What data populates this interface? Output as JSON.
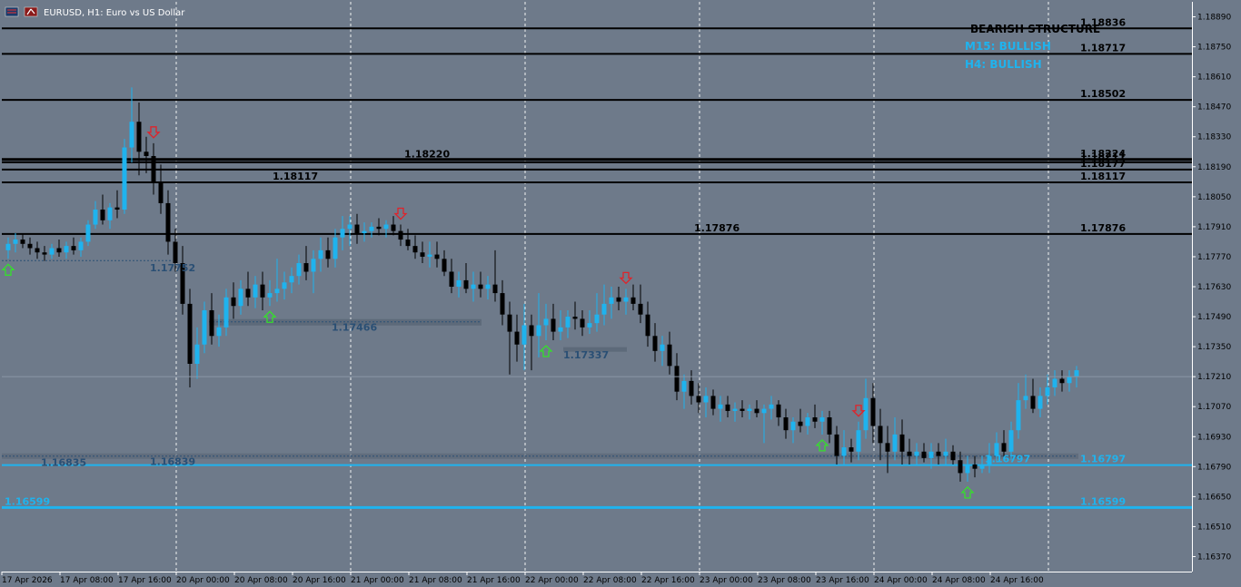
{
  "window": {
    "title": "EURUSD, H1:  Euro vs US Dollar",
    "icons": [
      "chart-window-icon",
      "trading-icon"
    ]
  },
  "colors": {
    "background": "#6e7a8a",
    "bull": "#1fb3ee",
    "bear": "#000000",
    "grid": "#ffffff",
    "level": "#000000",
    "support": "#1fb3ee",
    "up_arrow": "#35e02b",
    "down_arrow": "#e0232a"
  },
  "info_panel": {
    "structure": "BEARISH STRUCTURE",
    "m15": "M15: BULLISH",
    "h4": "H4: BULLISH"
  },
  "chart_data": {
    "type": "candlestick",
    "symbol": "EURUSD",
    "timeframe": "H1",
    "ylim": [
      1.163,
      1.1896
    ],
    "grid": "vertical-dashed",
    "y_ticks": [
      "1.18890",
      "1.18750",
      "1.18610",
      "1.18470",
      "1.18330",
      "1.18190",
      "1.18050",
      "1.17910",
      "1.17770",
      "1.17630",
      "1.17490",
      "1.17350",
      "1.17210",
      "1.17070",
      "1.16930",
      "1.16790",
      "1.16650",
      "1.16510",
      "1.16370"
    ],
    "x_ticks": [
      "17 Apr 2026",
      "17 Apr 08:00",
      "17 Apr 16:00",
      "20 Apr 00:00",
      "20 Apr 08:00",
      "20 Apr 16:00",
      "21 Apr 00:00",
      "21 Apr 08:00",
      "21 Apr 16:00",
      "22 Apr 00:00",
      "22 Apr 08:00",
      "22 Apr 16:00",
      "23 Apr 00:00",
      "23 Apr 08:00",
      "23 Apr 16:00",
      "24 Apr 00:00",
      "24 Apr 08:00",
      "24 Apr 16:00"
    ],
    "current_price": 1.1721,
    "candles": [
      [
        1.178,
        1.1786,
        1.1776,
        1.1783
      ],
      [
        1.1783,
        1.1788,
        1.1779,
        1.1785
      ],
      [
        1.1785,
        1.1788,
        1.1781,
        1.1783
      ],
      [
        1.1783,
        1.1786,
        1.1778,
        1.1781
      ],
      [
        1.1781,
        1.1784,
        1.1776,
        1.1779
      ],
      [
        1.1779,
        1.1782,
        1.1775,
        1.1778
      ],
      [
        1.1778,
        1.1783,
        1.1776,
        1.1781
      ],
      [
        1.1781,
        1.1785,
        1.1777,
        1.1779
      ],
      [
        1.1779,
        1.1784,
        1.1776,
        1.1782
      ],
      [
        1.1782,
        1.1786,
        1.1778,
        1.178
      ],
      [
        1.178,
        1.1786,
        1.1777,
        1.1784
      ],
      [
        1.1784,
        1.1794,
        1.1782,
        1.1792
      ],
      [
        1.1792,
        1.1803,
        1.179,
        1.1799
      ],
      [
        1.1799,
        1.1806,
        1.1792,
        1.1794
      ],
      [
        1.1794,
        1.1802,
        1.179,
        1.18
      ],
      [
        1.18,
        1.1808,
        1.1795,
        1.1799
      ],
      [
        1.1799,
        1.1832,
        1.1797,
        1.1828
      ],
      [
        1.1828,
        1.1856,
        1.1821,
        1.184
      ],
      [
        1.184,
        1.1849,
        1.1815,
        1.1826
      ],
      [
        1.1826,
        1.1833,
        1.1816,
        1.1824
      ],
      [
        1.1824,
        1.183,
        1.1806,
        1.1812
      ],
      [
        1.1812,
        1.182,
        1.1797,
        1.1802
      ],
      [
        1.1802,
        1.1808,
        1.1778,
        1.1784
      ],
      [
        1.1784,
        1.179,
        1.177,
        1.1774
      ],
      [
        1.1774,
        1.1782,
        1.175,
        1.1755
      ],
      [
        1.1755,
        1.1762,
        1.1716,
        1.1727
      ],
      [
        1.1727,
        1.1744,
        1.172,
        1.1736
      ],
      [
        1.1736,
        1.1756,
        1.1732,
        1.1752
      ],
      [
        1.1752,
        1.176,
        1.1736,
        1.174
      ],
      [
        1.174,
        1.175,
        1.1735,
        1.1744
      ],
      [
        1.1744,
        1.1762,
        1.174,
        1.1758
      ],
      [
        1.1758,
        1.1765,
        1.1748,
        1.1754
      ],
      [
        1.1754,
        1.1766,
        1.175,
        1.1762
      ],
      [
        1.1762,
        1.177,
        1.1754,
        1.1758
      ],
      [
        1.1758,
        1.1768,
        1.1753,
        1.1764
      ],
      [
        1.1764,
        1.177,
        1.1752,
        1.1758
      ],
      [
        1.1758,
        1.1766,
        1.1754,
        1.176
      ],
      [
        1.176,
        1.1776,
        1.1756,
        1.1762
      ],
      [
        1.1762,
        1.177,
        1.1757,
        1.1765
      ],
      [
        1.1765,
        1.1772,
        1.176,
        1.1768
      ],
      [
        1.1768,
        1.1778,
        1.1764,
        1.1774
      ],
      [
        1.1774,
        1.1782,
        1.1766,
        1.177
      ],
      [
        1.177,
        1.178,
        1.176,
        1.1776
      ],
      [
        1.1776,
        1.1786,
        1.177,
        1.178
      ],
      [
        1.178,
        1.1786,
        1.1772,
        1.1776
      ],
      [
        1.1776,
        1.179,
        1.1772,
        1.1786
      ],
      [
        1.1786,
        1.1796,
        1.178,
        1.179
      ],
      [
        1.179,
        1.1796,
        1.1782,
        1.1792
      ],
      [
        1.1792,
        1.1797,
        1.1783,
        1.1788
      ],
      [
        1.1788,
        1.1793,
        1.1784,
        1.1789
      ],
      [
        1.1789,
        1.1793,
        1.1786,
        1.1791
      ],
      [
        1.1791,
        1.1795,
        1.1787,
        1.179
      ],
      [
        1.179,
        1.1794,
        1.1786,
        1.1792
      ],
      [
        1.1792,
        1.1796,
        1.1787,
        1.1789
      ],
      [
        1.1789,
        1.1792,
        1.1782,
        1.1785
      ],
      [
        1.1785,
        1.179,
        1.178,
        1.1782
      ],
      [
        1.1782,
        1.1787,
        1.1776,
        1.1779
      ],
      [
        1.1779,
        1.1784,
        1.1774,
        1.1777
      ],
      [
        1.1777,
        1.1784,
        1.1772,
        1.1778
      ],
      [
        1.1778,
        1.1784,
        1.1772,
        1.1776
      ],
      [
        1.1776,
        1.178,
        1.1768,
        1.177
      ],
      [
        1.177,
        1.1776,
        1.176,
        1.1763
      ],
      [
        1.1763,
        1.177,
        1.1758,
        1.1766
      ],
      [
        1.1766,
        1.1774,
        1.176,
        1.1762
      ],
      [
        1.1762,
        1.177,
        1.1756,
        1.1764
      ],
      [
        1.1764,
        1.177,
        1.1758,
        1.1762
      ],
      [
        1.1762,
        1.1768,
        1.1757,
        1.1764
      ],
      [
        1.1764,
        1.178,
        1.1756,
        1.176
      ],
      [
        1.176,
        1.1766,
        1.1745,
        1.175
      ],
      [
        1.175,
        1.1756,
        1.1722,
        1.1742
      ],
      [
        1.1742,
        1.175,
        1.1728,
        1.1736
      ],
      [
        1.1736,
        1.1755,
        1.1724,
        1.1745
      ],
      [
        1.1745,
        1.175,
        1.1724,
        1.174
      ],
      [
        1.174,
        1.176,
        1.173,
        1.1745
      ],
      [
        1.1745,
        1.1755,
        1.1738,
        1.1748
      ],
      [
        1.1748,
        1.1755,
        1.1738,
        1.1742
      ],
      [
        1.1742,
        1.1752,
        1.1738,
        1.1744
      ],
      [
        1.1744,
        1.1752,
        1.1739,
        1.1749
      ],
      [
        1.1749,
        1.1756,
        1.1743,
        1.1748
      ],
      [
        1.1748,
        1.1752,
        1.174,
        1.1744
      ],
      [
        1.1744,
        1.1752,
        1.1741,
        1.1746
      ],
      [
        1.1746,
        1.176,
        1.1742,
        1.175
      ],
      [
        1.175,
        1.1764,
        1.1745,
        1.1755
      ],
      [
        1.1755,
        1.1763,
        1.1748,
        1.1758
      ],
      [
        1.1758,
        1.1763,
        1.1752,
        1.1756
      ],
      [
        1.1756,
        1.1762,
        1.175,
        1.1758
      ],
      [
        1.1758,
        1.1764,
        1.1752,
        1.1755
      ],
      [
        1.1755,
        1.1764,
        1.1746,
        1.175
      ],
      [
        1.175,
        1.1756,
        1.1735,
        1.174
      ],
      [
        1.174,
        1.1746,
        1.1728,
        1.1733
      ],
      [
        1.1733,
        1.174,
        1.1726,
        1.1736
      ],
      [
        1.1736,
        1.1742,
        1.1722,
        1.1726
      ],
      [
        1.1726,
        1.1732,
        1.171,
        1.1714
      ],
      [
        1.1714,
        1.1722,
        1.1706,
        1.1719
      ],
      [
        1.1719,
        1.1724,
        1.1708,
        1.1712
      ],
      [
        1.1712,
        1.1718,
        1.1704,
        1.1709
      ],
      [
        1.1709,
        1.1716,
        1.1702,
        1.1712
      ],
      [
        1.1712,
        1.1715,
        1.1703,
        1.1706
      ],
      [
        1.1706,
        1.1712,
        1.17,
        1.1708
      ],
      [
        1.1708,
        1.1712,
        1.1702,
        1.1705
      ],
      [
        1.1705,
        1.1709,
        1.17,
        1.1706
      ],
      [
        1.1706,
        1.171,
        1.1702,
        1.1705
      ],
      [
        1.1705,
        1.1708,
        1.1701,
        1.1706
      ],
      [
        1.1706,
        1.171,
        1.1702,
        1.1704
      ],
      [
        1.1704,
        1.1708,
        1.169,
        1.1706
      ],
      [
        1.1706,
        1.1712,
        1.1701,
        1.1708
      ],
      [
        1.1708,
        1.171,
        1.1698,
        1.1702
      ],
      [
        1.1702,
        1.1706,
        1.1692,
        1.1696
      ],
      [
        1.1696,
        1.1702,
        1.169,
        1.17
      ],
      [
        1.17,
        1.1706,
        1.1695,
        1.1698
      ],
      [
        1.1698,
        1.1704,
        1.1694,
        1.1702
      ],
      [
        1.1702,
        1.1708,
        1.1697,
        1.17
      ],
      [
        1.17,
        1.1705,
        1.1694,
        1.1702
      ],
      [
        1.1702,
        1.1705,
        1.169,
        1.1694
      ],
      [
        1.1694,
        1.1698,
        1.168,
        1.1684
      ],
      [
        1.1684,
        1.1696,
        1.168,
        1.1688
      ],
      [
        1.1688,
        1.1692,
        1.1681,
        1.1686
      ],
      [
        1.1686,
        1.17,
        1.1682,
        1.1696
      ],
      [
        1.1696,
        1.172,
        1.1692,
        1.1711
      ],
      [
        1.1711,
        1.1718,
        1.169,
        1.1698
      ],
      [
        1.1698,
        1.1706,
        1.1682,
        1.169
      ],
      [
        1.169,
        1.1698,
        1.1676,
        1.1686
      ],
      [
        1.1686,
        1.1702,
        1.1682,
        1.1694
      ],
      [
        1.1694,
        1.1701,
        1.168,
        1.1686
      ],
      [
        1.1686,
        1.1692,
        1.168,
        1.1684
      ],
      [
        1.1684,
        1.169,
        1.168,
        1.1686
      ],
      [
        1.1686,
        1.169,
        1.1681,
        1.1683
      ],
      [
        1.1683,
        1.169,
        1.1678,
        1.1686
      ],
      [
        1.1686,
        1.169,
        1.168,
        1.1684
      ],
      [
        1.1684,
        1.1692,
        1.168,
        1.1686
      ],
      [
        1.1686,
        1.1689,
        1.168,
        1.1682
      ],
      [
        1.1682,
        1.1686,
        1.1672,
        1.1676
      ],
      [
        1.1676,
        1.1684,
        1.1672,
        1.168
      ],
      [
        1.168,
        1.1684,
        1.1674,
        1.1678
      ],
      [
        1.1678,
        1.1684,
        1.1676,
        1.168
      ],
      [
        1.168,
        1.169,
        1.1676,
        1.1684
      ],
      [
        1.1684,
        1.1695,
        1.1681,
        1.169
      ],
      [
        1.169,
        1.1696,
        1.1682,
        1.1686
      ],
      [
        1.1686,
        1.17,
        1.1682,
        1.1696
      ],
      [
        1.1696,
        1.1718,
        1.1692,
        1.171
      ],
      [
        1.171,
        1.1722,
        1.1706,
        1.1712
      ],
      [
        1.1712,
        1.172,
        1.1704,
        1.1706
      ],
      [
        1.1706,
        1.1716,
        1.1702,
        1.1712
      ],
      [
        1.1712,
        1.1722,
        1.1708,
        1.1716
      ],
      [
        1.1716,
        1.1724,
        1.1712,
        1.172
      ],
      [
        1.172,
        1.1724,
        1.1714,
        1.1718
      ],
      [
        1.1718,
        1.1724,
        1.1714,
        1.1721
      ],
      [
        1.1721,
        1.1726,
        1.1716,
        1.1724
      ]
    ],
    "levels": [
      {
        "price": 1.18836,
        "label": "1.18836",
        "x_from": 0,
        "x_to": 1312,
        "width": 2,
        "color": "#000000"
      },
      {
        "price": 1.18717,
        "label": "1.18717",
        "x_from": 0,
        "x_to": 1312,
        "width": 2,
        "color": "#000000"
      },
      {
        "price": 1.18502,
        "label": "1.18502",
        "x_from": 0,
        "x_to": 1312,
        "width": 2,
        "color": "#000000"
      },
      {
        "price": 1.18224,
        "label": "1.18224",
        "x_from": 0,
        "x_to": 1312,
        "width": 3,
        "color": "#000000"
      },
      {
        "price": 1.18211,
        "label": "1.18211",
        "x_from": 0,
        "x_to": 1312,
        "width": 2,
        "color": "#000000"
      },
      {
        "price": 1.18177,
        "label": "1.18177",
        "x_from": 0,
        "x_to": 1312,
        "width": 2,
        "color": "#000000"
      },
      {
        "price": 1.18117,
        "label": "1.18117",
        "x_from": 0,
        "x_to": 1312,
        "width": 2,
        "color": "#000000"
      },
      {
        "price": 1.17876,
        "label": "1.17876",
        "x_from": 0,
        "x_to": 1312,
        "width": 2,
        "color": "#000000"
      },
      {
        "price": 1.16797,
        "label": "1.16797",
        "x_from": 0,
        "x_to": 1312,
        "width": 2,
        "color": "#1fb3ee"
      },
      {
        "price": 1.16599,
        "label": "1.16599",
        "x_from": 0,
        "x_to": 1312,
        "width": 3,
        "color": "#1fb3ee"
      }
    ],
    "in_chart_labels": [
      {
        "text": "1.18220",
        "price": 1.1822,
        "color": "#000000"
      },
      {
        "text": "1.18117",
        "price": 1.18117,
        "color": "#000000"
      },
      {
        "text": "1.17876",
        "price": 1.17876,
        "color": "#000000"
      },
      {
        "text": "1.17752",
        "price": 1.17752,
        "color": "#2a4f74"
      },
      {
        "text": "1.17466",
        "price": 1.17466,
        "color": "#2a4f74"
      },
      {
        "text": "1.17337",
        "price": 1.17337,
        "color": "#2a4f74"
      },
      {
        "text": "1.16835",
        "price": 1.16835,
        "color": "#2a4f74"
      },
      {
        "text": "1.16839",
        "price": 1.16839,
        "color": "#2a4f74"
      },
      {
        "text": "1.16797",
        "price": 1.16797,
        "color": "#1fb3ee"
      },
      {
        "text": "1.16599",
        "price": 1.16599,
        "color": "#1fb3ee"
      }
    ],
    "signals": [
      {
        "type": "buy",
        "bar": 0
      },
      {
        "type": "sell",
        "bar": 20
      },
      {
        "type": "buy",
        "bar": 36
      },
      {
        "type": "sell",
        "bar": 54
      },
      {
        "type": "buy",
        "bar": 74
      },
      {
        "type": "sell",
        "bar": 85
      },
      {
        "type": "buy",
        "bar": 112
      },
      {
        "type": "sell",
        "bar": 117
      },
      {
        "type": "buy",
        "bar": 132
      }
    ]
  }
}
